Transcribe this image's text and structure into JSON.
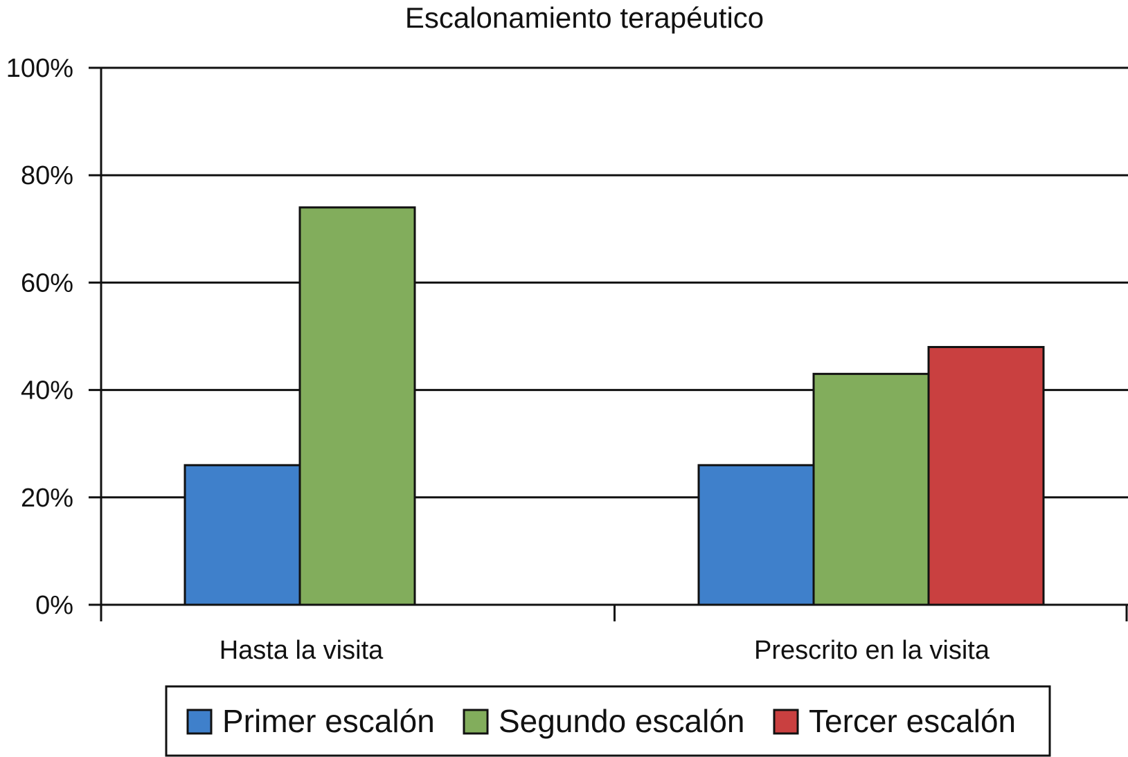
{
  "chart_data": {
    "type": "bar",
    "title": "Escalonamiento terapéutico",
    "xlabel": "",
    "ylabel": "",
    "ylim": [
      0,
      100
    ],
    "y_ticks": [
      "0%",
      "20%",
      "40%",
      "60%",
      "80%",
      "100%"
    ],
    "y_tick_values": [
      0,
      20,
      40,
      60,
      80,
      100
    ],
    "grid": true,
    "legend_position": "bottom",
    "categories": [
      "Hasta la visita",
      "Prescrito en la visita"
    ],
    "series": [
      {
        "name": "Primer escalón",
        "color": "#3f80cb",
        "values": [
          26,
          26
        ]
      },
      {
        "name": "Segundo escalón",
        "color": "#82ad5c",
        "values": [
          74,
          43
        ]
      },
      {
        "name": "Tercer escalón",
        "color": "#c94040",
        "values": [
          null,
          48
        ]
      }
    ]
  }
}
